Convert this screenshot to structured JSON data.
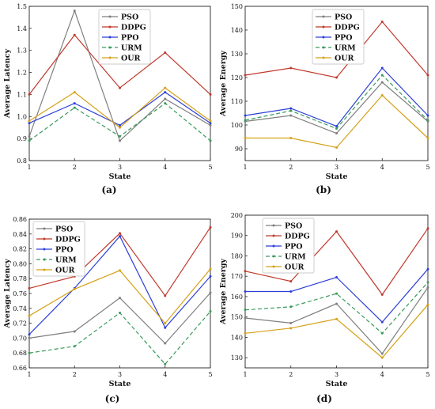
{
  "chart_data": [
    {
      "type": "line",
      "caption": "(a)",
      "xlabel": "State",
      "ylabel": "Average Latency",
      "x": [
        1,
        2,
        3,
        4,
        5
      ],
      "xlim": [
        1,
        5
      ],
      "ylim": [
        0.8,
        1.5
      ],
      "yticks": [
        "0.8",
        "0.9",
        "1.0",
        "1.1",
        "1.2",
        "1.3",
        "1.4",
        "1.5"
      ],
      "legend_position": "top-center",
      "series": [
        {
          "name": "PSO",
          "color": "#7f7f7f",
          "dash": "solid",
          "values": [
            0.91,
            1.48,
            0.89,
            1.08,
            0.96
          ]
        },
        {
          "name": "DDPG",
          "color": "#c0392b",
          "dash": "solid",
          "values": [
            1.1,
            1.37,
            1.13,
            1.29,
            1.1
          ]
        },
        {
          "name": "PPO",
          "color": "#2c3fd8",
          "dash": "solid",
          "values": [
            0.97,
            1.06,
            0.96,
            1.11,
            0.97
          ]
        },
        {
          "name": "URM",
          "color": "#3a9a5b",
          "dash": "dashed",
          "values": [
            0.89,
            1.04,
            0.91,
            1.06,
            0.89
          ]
        },
        {
          "name": "OUR",
          "color": "#d4a017",
          "dash": "solid",
          "values": [
            0.98,
            1.11,
            0.95,
            1.13,
            0.98
          ]
        }
      ]
    },
    {
      "type": "line",
      "caption": "(b)",
      "xlabel": "State",
      "ylabel": "Average Energy",
      "x": [
        1,
        2,
        3,
        4,
        5
      ],
      "xlim": [
        1,
        5
      ],
      "ylim": [
        85,
        150
      ],
      "yticks": [
        "90",
        "100",
        "110",
        "120",
        "130",
        "140",
        "150"
      ],
      "legend_position": "top-center",
      "series": [
        {
          "name": "PSO",
          "color": "#7f7f7f",
          "dash": "solid",
          "values": [
            101.5,
            104,
            96.5,
            118,
            101.5
          ]
        },
        {
          "name": "DDPG",
          "color": "#c0392b",
          "dash": "solid",
          "values": [
            121,
            124,
            120,
            143.5,
            121
          ]
        },
        {
          "name": "PPO",
          "color": "#2c3fd8",
          "dash": "solid",
          "values": [
            104,
            107,
            99.5,
            124,
            104
          ]
        },
        {
          "name": "URM",
          "color": "#3a9a5b",
          "dash": "dashed",
          "values": [
            102,
            106,
            98.5,
            121,
            102
          ]
        },
        {
          "name": "OUR",
          "color": "#d4a017",
          "dash": "solid",
          "values": [
            94.5,
            94.5,
            90.5,
            112.5,
            94.5
          ]
        }
      ]
    },
    {
      "type": "line",
      "caption": "(c)",
      "xlabel": "State",
      "ylabel": "Average Latency",
      "x": [
        1,
        2,
        3,
        4,
        5
      ],
      "xlim": [
        1,
        5
      ],
      "ylim": [
        0.66,
        0.86
      ],
      "yticks": [
        "0.66",
        "0.68",
        "0.70",
        "0.72",
        "0.74",
        "0.76",
        "0.78",
        "0.80",
        "0.82",
        "0.84",
        "0.86"
      ],
      "legend_position": "top-left",
      "series": [
        {
          "name": "PSO",
          "color": "#7f7f7f",
          "dash": "solid",
          "values": [
            0.7,
            0.709,
            0.754,
            0.693,
            0.761
          ]
        },
        {
          "name": "DDPG",
          "color": "#c0392b",
          "dash": "solid",
          "values": [
            0.767,
            0.783,
            0.841,
            0.757,
            0.849
          ]
        },
        {
          "name": "PPO",
          "color": "#2c3fd8",
          "dash": "solid",
          "values": [
            0.705,
            0.767,
            0.837,
            0.714,
            0.783
          ]
        },
        {
          "name": "URM",
          "color": "#3a9a5b",
          "dash": "dashed",
          "values": [
            0.68,
            0.689,
            0.734,
            0.665,
            0.736
          ]
        },
        {
          "name": "OUR",
          "color": "#d4a017",
          "dash": "solid",
          "values": [
            0.73,
            0.766,
            0.791,
            0.72,
            0.793
          ]
        }
      ]
    },
    {
      "type": "line",
      "caption": "(d)",
      "xlabel": "State",
      "ylabel": "Average Energy",
      "x": [
        1,
        2,
        3,
        4,
        5
      ],
      "xlim": [
        1,
        5
      ],
      "ylim": [
        125,
        200
      ],
      "yticks": [
        "130",
        "140",
        "150",
        "160",
        "170",
        "180",
        "190",
        "200"
      ],
      "legend_position": "top-center",
      "series": [
        {
          "name": "PSO",
          "color": "#7f7f7f",
          "dash": "solid",
          "values": [
            149.5,
            147,
            156.5,
            132,
            164.5
          ]
        },
        {
          "name": "DDPG",
          "color": "#c0392b",
          "dash": "solid",
          "values": [
            172.5,
            167.5,
            192,
            161,
            193.5
          ]
        },
        {
          "name": "PPO",
          "color": "#2c3fd8",
          "dash": "solid",
          "values": [
            162.5,
            162.5,
            169.5,
            147.5,
            173.5
          ]
        },
        {
          "name": "URM",
          "color": "#3a9a5b",
          "dash": "dashed",
          "values": [
            153.5,
            155,
            161.5,
            142,
            167
          ]
        },
        {
          "name": "OUR",
          "color": "#d4a017",
          "dash": "solid",
          "values": [
            142,
            144.5,
            149,
            130,
            156
          ]
        }
      ]
    }
  ]
}
